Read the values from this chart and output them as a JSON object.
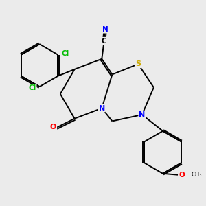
{
  "bg_color": "#ebebeb",
  "bond_color": "#000000",
  "atom_colors": {
    "N": "#0000ff",
    "S": "#ccaa00",
    "O": "#ff0000",
    "Cl": "#00bb00",
    "C_label": "#000000"
  },
  "figsize": [
    3.0,
    3.0
  ],
  "dpi": 100
}
